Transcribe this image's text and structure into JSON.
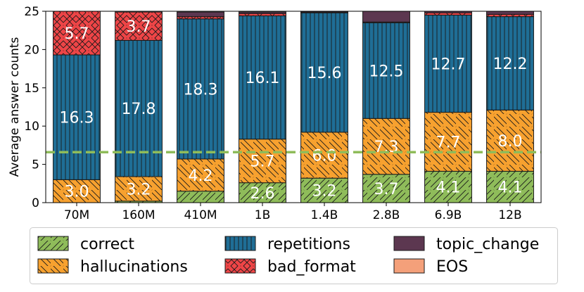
{
  "chart_data": {
    "type": "bar",
    "stacked": true,
    "categories": [
      "70M",
      "160M",
      "410M",
      "1B",
      "1.4B",
      "2.8B",
      "6.9B",
      "12B"
    ],
    "ylabel": "Average answer counts",
    "ylim": [
      0,
      25
    ],
    "yticks": [
      0,
      5,
      10,
      15,
      20,
      25
    ],
    "series": [
      {
        "name": "correct",
        "color": "#8fbc5a",
        "hatch": "diag",
        "values": [
          0.0,
          0.2,
          1.5,
          2.6,
          3.2,
          3.7,
          4.1,
          4.1
        ],
        "labels": [
          "",
          "",
          "",
          "2.6",
          "3.2",
          "3.7",
          "4.1",
          "4.1"
        ]
      },
      {
        "name": "hallucinations",
        "color": "#f7a12f",
        "hatch": "backdiag",
        "values": [
          3.0,
          3.2,
          4.2,
          5.7,
          6.0,
          7.3,
          7.7,
          8.0
        ],
        "labels": [
          "3.0",
          "3.2",
          "4.2",
          "5.7",
          "6.0",
          "7.3",
          "7.7",
          "8.0"
        ]
      },
      {
        "name": "repetitions",
        "color": "#1f6e96",
        "hatch": "vertical",
        "values": [
          16.3,
          17.8,
          18.3,
          16.1,
          15.6,
          12.5,
          12.7,
          12.2
        ],
        "labels": [
          "16.3",
          "17.8",
          "18.3",
          "16.1",
          "15.6",
          "12.5",
          "12.7",
          "12.2"
        ]
      },
      {
        "name": "bad_format",
        "color": "#ef4547",
        "hatch": "cross",
        "values": [
          5.7,
          3.7,
          0.3,
          0.3,
          0.1,
          0.1,
          0.3,
          0.3
        ],
        "labels": [
          "5.7",
          "3.7",
          "",
          "",
          "",
          "",
          "",
          ""
        ]
      },
      {
        "name": "topic_change",
        "color": "#5c3750",
        "hatch": "none",
        "values": [
          0.0,
          0.0,
          0.6,
          0.2,
          0.2,
          1.4,
          0.2,
          0.4
        ],
        "labels": [
          "",
          "",
          "",
          "",
          "",
          "",
          "",
          ""
        ]
      },
      {
        "name": "EOS",
        "color": "#f4a07a",
        "hatch": "none",
        "values": [
          0,
          0,
          0,
          0,
          0,
          0,
          0,
          0
        ],
        "labels": [
          "",
          "",
          "",
          "",
          "",
          "",
          "",
          ""
        ]
      }
    ],
    "reference_line": {
      "y": 6.6,
      "color": "#8fbc5a",
      "style": "dashed"
    },
    "legend": {
      "position": "bottom",
      "columns": 3
    }
  }
}
